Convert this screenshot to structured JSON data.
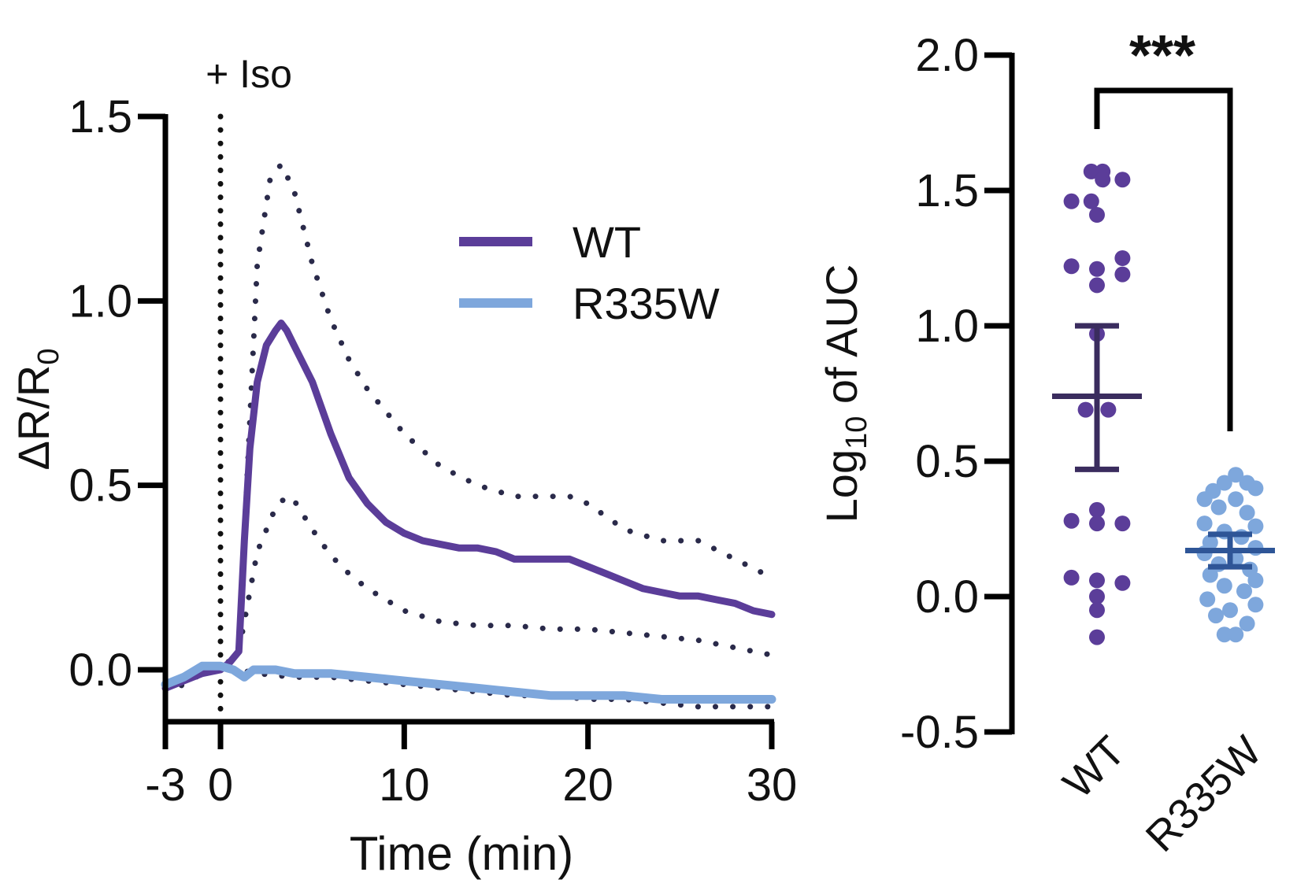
{
  "colors": {
    "wt": "#5b3d99",
    "wt_mean": "#3a2c5e",
    "r335w": "#7ea7dc",
    "r335w_mean": "#2e5597",
    "ci": "#2a2a4a",
    "axis": "#000000"
  },
  "chart_data": [
    {
      "type": "line",
      "title": "",
      "xlabel": "Time (min)",
      "ylabel": "ΔR/R",
      "ylabel_sub": "0",
      "xlim": [
        -3,
        30
      ],
      "ylim": [
        -0.15,
        1.5
      ],
      "xticks": [
        -3,
        0,
        10,
        20,
        30
      ],
      "xtick_labels": [
        "-3",
        "0",
        "10",
        "20",
        "30"
      ],
      "yticks": [
        0.0,
        0.5,
        1.0,
        1.5
      ],
      "ytick_labels": [
        "0.0",
        "0.5",
        "1.0",
        "1.5"
      ],
      "annotation": {
        "text": "+ Iso",
        "x": 0
      },
      "legend": {
        "position": "top-right",
        "entries": [
          "WT",
          "R335W"
        ]
      },
      "series": [
        {
          "name": "WT",
          "style": "solid",
          "x": [
            -3,
            -2,
            -1,
            0,
            0.5,
            1,
            1.3,
            1.6,
            2,
            2.5,
            3,
            3.3,
            3.6,
            4,
            5,
            6,
            7,
            8,
            9,
            10,
            11,
            12,
            13,
            14,
            15,
            16,
            17,
            18,
            19,
            20,
            21,
            22,
            23,
            24,
            25,
            26,
            27,
            28,
            29,
            30
          ],
          "y": [
            -0.05,
            -0.03,
            -0.01,
            0.0,
            0.02,
            0.05,
            0.35,
            0.6,
            0.78,
            0.88,
            0.92,
            0.94,
            0.92,
            0.88,
            0.78,
            0.64,
            0.52,
            0.45,
            0.4,
            0.37,
            0.35,
            0.34,
            0.33,
            0.33,
            0.32,
            0.3,
            0.3,
            0.3,
            0.3,
            0.28,
            0.26,
            0.24,
            0.22,
            0.21,
            0.2,
            0.2,
            0.19,
            0.18,
            0.16,
            0.15
          ]
        },
        {
          "name": "WT upper 95% CI",
          "style": "dotted",
          "x": [
            -3,
            -2,
            -1,
            0,
            1,
            2,
            2.7,
            3.3,
            4,
            5,
            6,
            7,
            8,
            10,
            12,
            14,
            16,
            18,
            19,
            20,
            22,
            24,
            26,
            28,
            30
          ],
          "y": [
            -0.05,
            -0.03,
            -0.01,
            0.0,
            0.05,
            1.1,
            1.33,
            1.37,
            1.3,
            1.1,
            0.95,
            0.84,
            0.76,
            0.64,
            0.55,
            0.5,
            0.47,
            0.47,
            0.47,
            0.45,
            0.38,
            0.35,
            0.35,
            0.3,
            0.25
          ]
        },
        {
          "name": "WT lower 95% CI",
          "style": "dotted",
          "x": [
            -3,
            -2,
            -1,
            0,
            1,
            2,
            3,
            3.6,
            4,
            5,
            6,
            7,
            8,
            10,
            12,
            14,
            16,
            18,
            20,
            22,
            24,
            26,
            28,
            30
          ],
          "y": [
            -0.05,
            -0.03,
            -0.01,
            0.0,
            0.05,
            0.32,
            0.44,
            0.47,
            0.46,
            0.38,
            0.31,
            0.26,
            0.22,
            0.16,
            0.13,
            0.12,
            0.12,
            0.11,
            0.11,
            0.1,
            0.09,
            0.08,
            0.06,
            0.04
          ]
        },
        {
          "name": "R335W",
          "style": "solid",
          "x": [
            -3,
            -2,
            -1,
            0,
            0.7,
            1.3,
            1.8,
            3,
            4,
            5,
            6,
            8,
            10,
            12,
            14,
            16,
            18,
            20,
            22,
            24,
            26,
            28,
            30
          ],
          "y": [
            -0.04,
            -0.02,
            0.01,
            0.01,
            0.0,
            -0.02,
            0.0,
            0.0,
            -0.01,
            -0.01,
            -0.01,
            -0.02,
            -0.03,
            -0.04,
            -0.05,
            -0.06,
            -0.07,
            -0.07,
            -0.07,
            -0.08,
            -0.08,
            -0.08,
            -0.08
          ]
        },
        {
          "name": "R335W lower 95% CI",
          "style": "dotted",
          "x": [
            -3,
            -2,
            -1,
            0,
            1,
            2,
            4,
            6,
            8,
            10,
            12,
            14,
            16,
            18,
            20,
            22,
            24,
            26,
            28,
            30
          ],
          "y": [
            -0.06,
            -0.04,
            -0.01,
            0.0,
            0.0,
            -0.01,
            -0.02,
            -0.02,
            -0.03,
            -0.04,
            -0.05,
            -0.06,
            -0.07,
            -0.07,
            -0.08,
            -0.08,
            -0.09,
            -0.1,
            -0.1,
            -0.1
          ]
        }
      ]
    },
    {
      "type": "scatter",
      "title": "",
      "xlabel": "",
      "ylabel_prefix": "Log",
      "ylabel_sub": "10",
      "ylabel_suffix": " of AUC",
      "ylim": [
        -0.5,
        2.0
      ],
      "yticks": [
        -0.5,
        0.0,
        0.5,
        1.0,
        1.5,
        2.0
      ],
      "ytick_labels": [
        "-0.5",
        "0.0",
        "0.5",
        "1.0",
        "1.5",
        "2.0"
      ],
      "categories": [
        "WT",
        "R335W"
      ],
      "significance": {
        "label": "***",
        "between": [
          "WT",
          "R335W"
        ],
        "y": 1.89
      },
      "groups": [
        {
          "name": "WT",
          "mean": 0.74,
          "error": [
            0.47,
            1.0
          ],
          "points": [
            {
              "y": 1.57,
              "dx": -0.1
            },
            {
              "y": 1.57,
              "dx": 0.1
            },
            {
              "y": 1.54,
              "dx": 0.1
            },
            {
              "y": 1.54,
              "dx": 0.45
            },
            {
              "y": 1.46,
              "dx": -0.45
            },
            {
              "y": 1.46,
              "dx": -0.1
            },
            {
              "y": 1.41,
              "dx": 0.0
            },
            {
              "y": 1.25,
              "dx": 0.45
            },
            {
              "y": 1.22,
              "dx": -0.45
            },
            {
              "y": 1.21,
              "dx": 0.0
            },
            {
              "y": 1.19,
              "dx": 0.45
            },
            {
              "y": 1.15,
              "dx": 0.0
            },
            {
              "y": 0.97,
              "dx": 0.0
            },
            {
              "y": 0.69,
              "dx": -0.2
            },
            {
              "y": 0.69,
              "dx": 0.2
            },
            {
              "y": 0.32,
              "dx": 0.0
            },
            {
              "y": 0.28,
              "dx": -0.45
            },
            {
              "y": 0.27,
              "dx": 0.45
            },
            {
              "y": 0.27,
              "dx": 0.0
            },
            {
              "y": 0.07,
              "dx": -0.45
            },
            {
              "y": 0.05,
              "dx": 0.45
            },
            {
              "y": 0.06,
              "dx": 0.0
            },
            {
              "y": 0.0,
              "dx": 0.0
            },
            {
              "y": -0.05,
              "dx": 0.0
            },
            {
              "y": -0.15,
              "dx": 0.0
            }
          ]
        },
        {
          "name": "R335W",
          "mean": 0.17,
          "error": [
            0.11,
            0.23
          ],
          "points": [
            {
              "y": 0.45,
              "dx": 0.1
            },
            {
              "y": 0.42,
              "dx": -0.1
            },
            {
              "y": 0.42,
              "dx": 0.3
            },
            {
              "y": 0.39,
              "dx": -0.3
            },
            {
              "y": 0.4,
              "dx": 0.45
            },
            {
              "y": 0.36,
              "dx": -0.45
            },
            {
              "y": 0.36,
              "dx": 0.1
            },
            {
              "y": 0.33,
              "dx": -0.2
            },
            {
              "y": 0.31,
              "dx": 0.3
            },
            {
              "y": 0.27,
              "dx": -0.45
            },
            {
              "y": 0.26,
              "dx": 0.45
            },
            {
              "y": 0.24,
              "dx": -0.1
            },
            {
              "y": 0.22,
              "dx": 0.2
            },
            {
              "y": 0.2,
              "dx": -0.35
            },
            {
              "y": 0.18,
              "dx": 0.45
            },
            {
              "y": 0.16,
              "dx": -0.45
            },
            {
              "y": 0.14,
              "dx": 0.1
            },
            {
              "y": 0.12,
              "dx": -0.2
            },
            {
              "y": 0.1,
              "dx": 0.35
            },
            {
              "y": 0.08,
              "dx": -0.35
            },
            {
              "y": 0.06,
              "dx": 0.45
            },
            {
              "y": 0.04,
              "dx": -0.1
            },
            {
              "y": 0.02,
              "dx": 0.25
            },
            {
              "y": -0.01,
              "dx": -0.4
            },
            {
              "y": -0.03,
              "dx": 0.45
            },
            {
              "y": -0.05,
              "dx": 0.0
            },
            {
              "y": -0.07,
              "dx": -0.25
            },
            {
              "y": -0.1,
              "dx": 0.3
            },
            {
              "y": -0.14,
              "dx": -0.1
            },
            {
              "y": -0.14,
              "dx": 0.1
            }
          ]
        }
      ]
    }
  ]
}
